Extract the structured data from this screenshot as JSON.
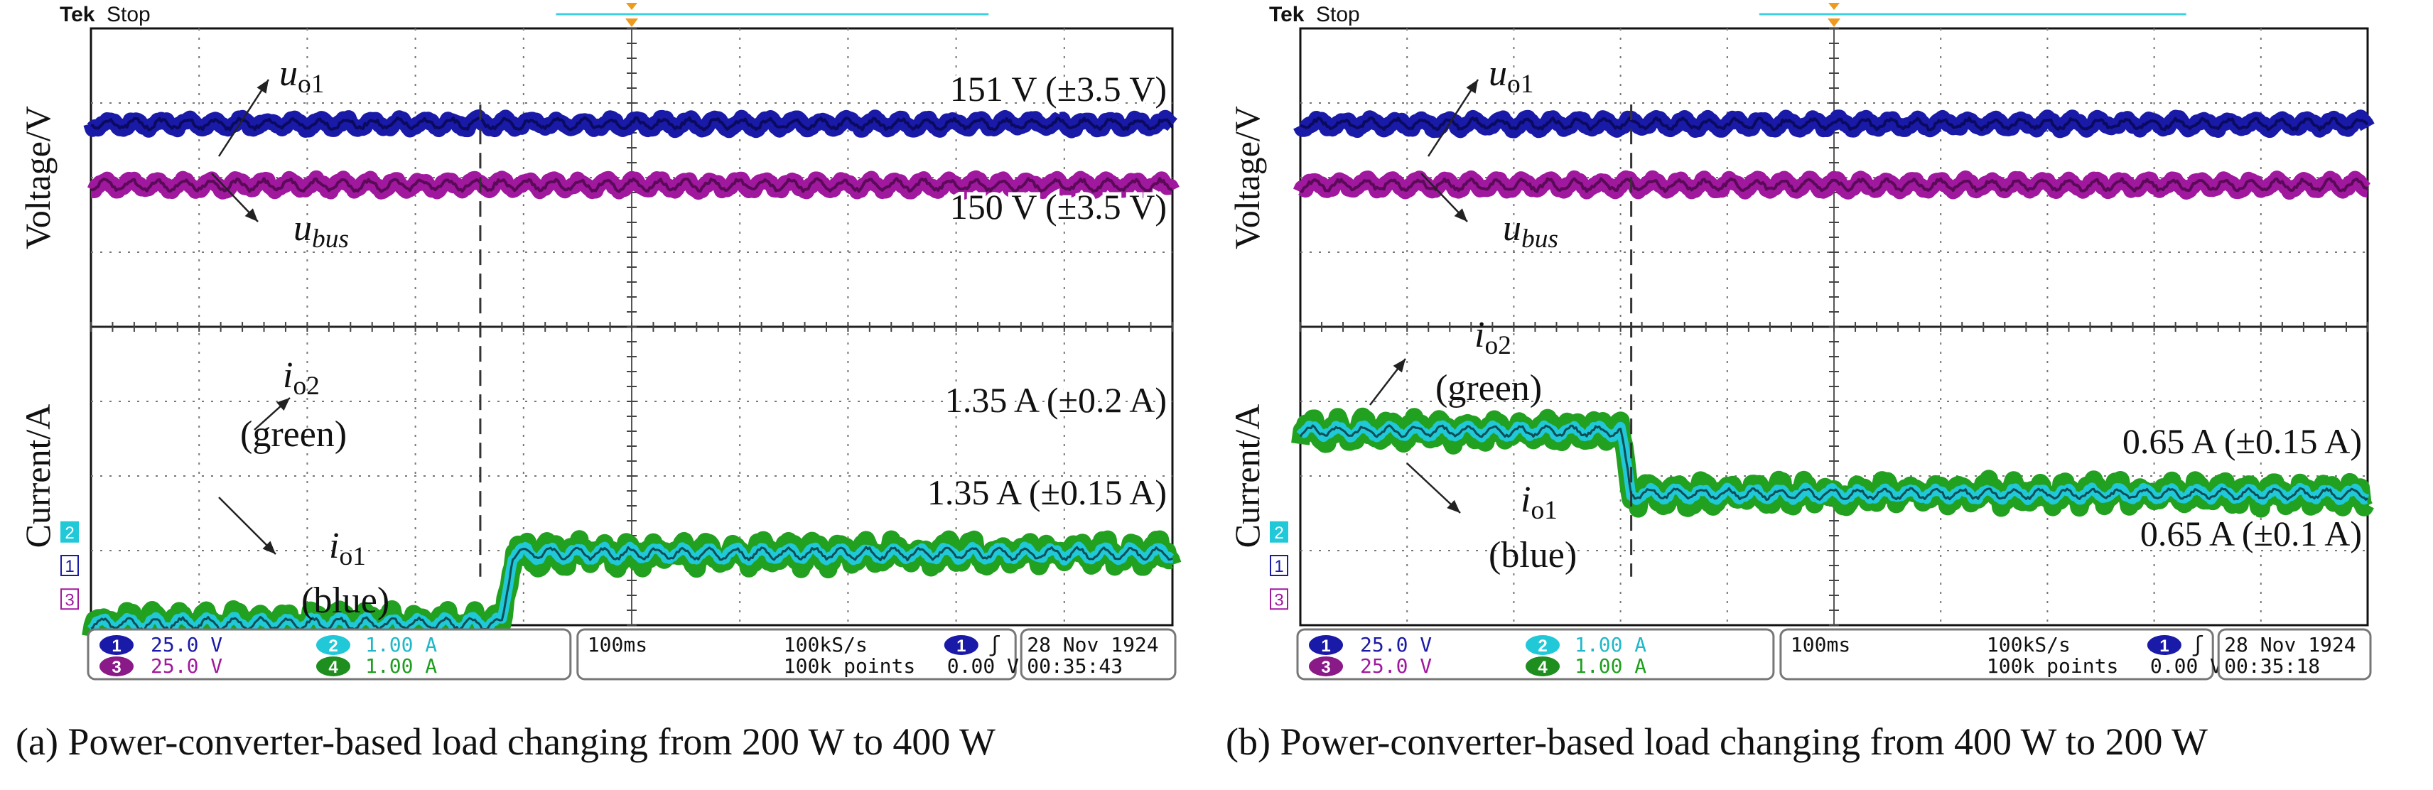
{
  "chart_data": [
    {
      "type": "line",
      "panel": "a",
      "caption": "(a) Power-converter-based load changing from 200 W to 400 W",
      "header": {
        "brand": "Tek",
        "state": "Stop"
      },
      "y_label_top": "Voltage/V",
      "y_label_bottom": "Current/A",
      "step_time_div": 3.8,
      "step_direction": "up",
      "series": [
        {
          "name": "uo1",
          "symbol": "u",
          "sub": "o1",
          "color": "#1a1aa8",
          "level_div": 1.28,
          "ripple_div": 0.12
        },
        {
          "name": "ubus",
          "symbol": "u",
          "sub": "bus",
          "color": "#a0189e",
          "level_div": 2.1,
          "ripple_div": 0.13
        },
        {
          "name": "io2 (green)",
          "symbol": "i",
          "sub": "o2",
          "color_label": "(green)",
          "color": "#22a020",
          "before_div": 7.98,
          "after_div": 7.04,
          "ripple_div": 0.2
        },
        {
          "name": "io1 (blue)",
          "symbol": "i",
          "sub": "o1",
          "color_label": "(blue)",
          "color": "#20c8d8",
          "before_div": 7.98,
          "after_div": 7.04,
          "ripple_div": 0.14
        }
      ],
      "annotations": {
        "v1": "151 V (±3.5 V)",
        "v2": "150 V (±3.5 V)",
        "i1": "1.35 A (±0.2 A)",
        "i2": "1.35 A (±0.15 A)"
      },
      "ground_markers": [
        "2",
        "1",
        "3"
      ],
      "status": {
        "ch1_scale": "25.0 V",
        "ch2_scale": "1.00 A",
        "ch3_scale": "25.0 V",
        "ch4_scale": "1.00 A",
        "ch1_badge": "1",
        "ch2_badge": "2",
        "ch3_badge": "3",
        "ch4_badge": "4",
        "timebase": "100ms",
        "sample_rate": "100kS/s",
        "record_length": "100k points",
        "trigger_badge": "1",
        "trigger_slope": "ʃ",
        "trigger_level": "0.00 V",
        "date": "28 Nov 1924",
        "time": "00:35:43"
      }
    },
    {
      "type": "line",
      "panel": "b",
      "caption": "(b) Power-converter-based load changing from 400 W to 200 W",
      "header": {
        "brand": "Tek",
        "state": "Stop"
      },
      "y_label_top": "Voltage/V",
      "y_label_bottom": "Current/A",
      "step_time_div": 3.0,
      "step_direction": "down",
      "series": [
        {
          "name": "uo1",
          "symbol": "u",
          "sub": "o1",
          "color": "#1a1aa8",
          "level_div": 1.28,
          "ripple_div": 0.12
        },
        {
          "name": "ubus",
          "symbol": "u",
          "sub": "bus",
          "color": "#a0189e",
          "level_div": 2.1,
          "ripple_div": 0.13
        },
        {
          "name": "io2 (green)",
          "symbol": "i",
          "sub": "o2",
          "color_label": "(green)",
          "color": "#22a020",
          "before_div": 5.4,
          "after_div": 6.24,
          "ripple_div": 0.18
        },
        {
          "name": "io1 (blue)",
          "symbol": "i",
          "sub": "o1",
          "color_label": "(blue)",
          "color": "#20c8d8",
          "before_div": 5.4,
          "after_div": 6.24,
          "ripple_div": 0.12
        }
      ],
      "annotations": {
        "v1": "",
        "v2": "",
        "i1": "0.65 A (±0.15 A)",
        "i2": "0.65 A (±0.1 A)"
      },
      "ground_markers": [
        "2",
        "1",
        "3"
      ],
      "status": {
        "ch1_scale": "25.0 V",
        "ch2_scale": "1.00 A",
        "ch3_scale": "25.0 V",
        "ch4_scale": "1.00 A",
        "ch1_badge": "1",
        "ch2_badge": "2",
        "ch3_badge": "3",
        "ch4_badge": "4",
        "timebase": "100ms",
        "sample_rate": "100kS/s",
        "record_length": "100k points",
        "trigger_badge": "1",
        "trigger_slope": "ʃ",
        "trigger_level": "0.00 V",
        "date": "28 Nov 1924",
        "time": "00:35:18"
      }
    }
  ]
}
